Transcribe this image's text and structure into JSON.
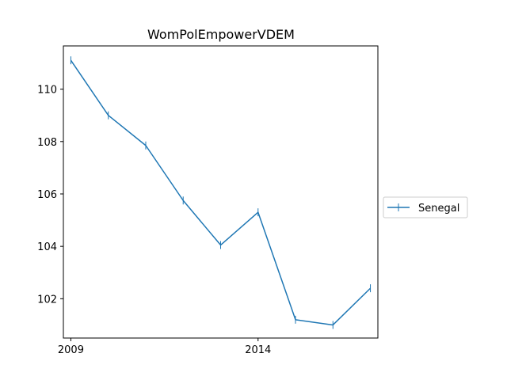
{
  "chart_data": {
    "type": "line",
    "title": "WomPolEmpowerVDEM",
    "xlabel": "",
    "ylabel": "",
    "x": [
      2009,
      2010,
      2011,
      2012,
      2013,
      2014,
      2015,
      2016,
      2017
    ],
    "series": [
      {
        "name": "Senegal",
        "values": [
          111.1,
          109.0,
          107.85,
          105.75,
          104.05,
          105.3,
          101.2,
          101.0,
          102.4
        ],
        "color": "#1f77b4"
      }
    ],
    "xticks": [
      2009,
      2014
    ],
    "xtick_labels": [
      "2009",
      "2014"
    ],
    "yticks": [
      102,
      104,
      106,
      108,
      110
    ],
    "ytick_labels": [
      "102",
      "104",
      "106",
      "108",
      "110"
    ],
    "xlim": [
      2008.8,
      2017.2
    ],
    "ylim": [
      100.5,
      111.65
    ],
    "grid": false,
    "legend": "outside-right"
  }
}
